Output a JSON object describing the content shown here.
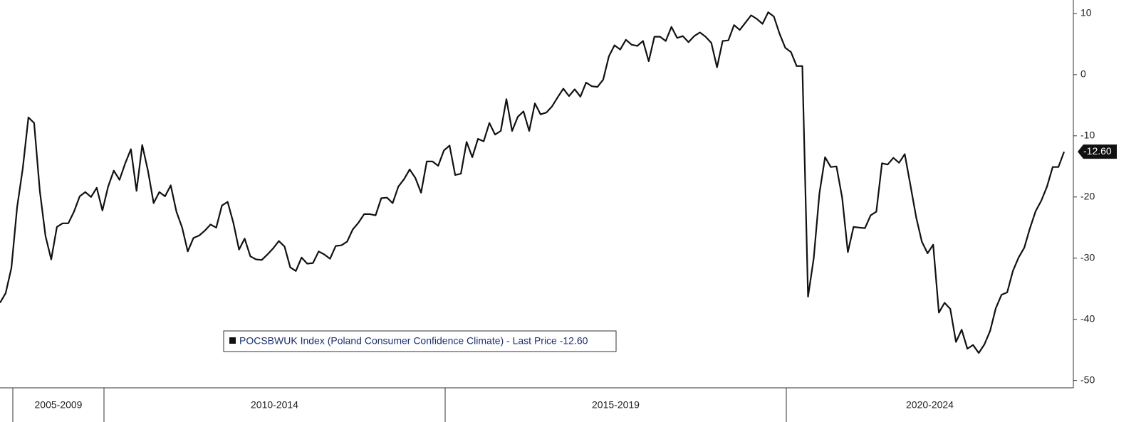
{
  "chart_data": {
    "type": "line",
    "periods": [
      "2005-2009",
      "2010-2014",
      "2015-2019",
      "2020-2024"
    ],
    "series": [
      {
        "name": "POCSBWUK Index (Poland Consumer Confidence Climate) - Last Price -12.60",
        "color": "#111111",
        "values": [
          -37.3,
          -35.7,
          -31.6,
          -21.7,
          -15.3,
          -7.0,
          -7.9,
          -19,
          -26.4,
          -30.2,
          -24.9,
          -24.3,
          -24.3,
          -22.4,
          -19.9,
          -19.2,
          -20,
          -18.5,
          -22.2,
          -18.3,
          -15.7,
          -17.2,
          -14.5,
          -12.2,
          -19,
          -11.5,
          -15.7,
          -21,
          -19.2,
          -19.9,
          -18.1,
          -22.4,
          -25,
          -28.9,
          -26.7,
          -26.3,
          -25.5,
          -24.5,
          -25,
          -21.4,
          -20.8,
          -24.2,
          -28.6,
          -26.8,
          -29.7,
          -30.2,
          -30.3,
          -29.4,
          -28.4,
          -27.2,
          -28.1,
          -31.5,
          -32.1,
          -29.9,
          -30.9,
          -30.8,
          -28.9,
          -29.4,
          -30.1,
          -28,
          -27.9,
          -27.3,
          -25.3,
          -24.2,
          -22.8,
          -22.8,
          -23,
          -20.2,
          -20.1,
          -21,
          -18.3,
          -17.1,
          -15.5,
          -16.9,
          -19.3,
          -14.2,
          -14.2,
          -14.9,
          -12.4,
          -11.6,
          -16.4,
          -16.2,
          -11,
          -13.5,
          -10.5,
          -10.9,
          -7.9,
          -9.8,
          -9.2,
          -4,
          -9.2,
          -6.9,
          -6,
          -9.2,
          -4.7,
          -6.5,
          -6.2,
          -5.2,
          -3.7,
          -2.3,
          -3.5,
          -2.4,
          -3.6,
          -1.3,
          -1.9,
          -2,
          -0.8,
          3,
          4.8,
          4.1,
          5.7,
          4.9,
          4.7,
          5.5,
          2.2,
          6.2,
          6.2,
          5.5,
          7.8,
          6,
          6.3,
          5.3,
          6.3,
          6.9,
          6.2,
          5.2,
          1.2,
          5.5,
          5.6,
          8.1,
          7.3,
          8.5,
          9.7,
          9.1,
          8.3,
          10.2,
          9.5,
          6.7,
          4.4,
          3.7,
          1.4,
          1.4,
          -36.3,
          -30,
          -19.4,
          -13.5,
          -15.1,
          -15,
          -20.1,
          -29,
          -24.9,
          -25,
          -25.1,
          -23,
          -22.4,
          -14.5,
          -14.7,
          -13.6,
          -14.4,
          -13,
          -18.1,
          -23.3,
          -27.3,
          -29.2,
          -27.8,
          -38.9,
          -37.3,
          -38.3,
          -43.7,
          -41.7,
          -44.8,
          -44.2,
          -45.5,
          -44.1,
          -41.9,
          -38.2,
          -36,
          -35.6,
          -32.1,
          -29.9,
          -28.3,
          -25.1,
          -22.3,
          -20.6,
          -18.3,
          -15.1,
          -15.1,
          -12.6
        ],
        "value_labels": [
          null,
          null,
          null,
          null,
          null,
          null,
          null,
          null,
          null,
          null,
          null,
          null,
          null,
          null,
          null,
          null,
          null,
          null,
          null,
          null,
          null,
          null,
          null,
          null,
          null,
          null,
          null,
          null,
          null,
          null,
          null,
          null,
          null,
          null,
          null,
          null,
          null,
          null,
          null,
          null,
          null,
          null,
          null,
          null,
          null,
          null,
          null,
          null,
          null,
          null,
          null,
          null,
          null,
          null,
          null,
          null,
          null,
          null,
          null,
          null,
          null,
          null,
          null,
          null,
          null,
          null,
          null,
          null,
          null,
          null,
          null,
          null,
          null,
          null,
          null,
          null,
          null,
          null,
          null,
          null,
          null,
          null,
          null,
          null,
          null,
          null,
          null,
          null,
          null,
          null,
          null,
          null,
          null,
          null,
          null,
          null,
          null,
          null,
          null,
          null,
          null,
          null,
          null,
          null,
          null,
          null,
          null,
          null,
          null,
          null,
          null,
          null,
          null,
          null,
          null,
          null,
          null,
          null,
          null,
          null,
          null,
          null,
          null,
          null,
          null,
          null,
          null,
          null,
          null,
          null,
          null,
          null,
          null,
          null,
          null,
          null,
          null,
          null,
          null,
          null,
          null,
          null,
          null,
          null,
          null,
          null,
          null,
          null,
          null,
          null,
          null,
          null,
          null,
          null,
          null,
          null,
          null,
          null,
          null,
          null,
          null,
          null,
          null,
          null,
          null,
          null,
          null,
          null,
          null,
          null,
          null,
          null,
          null,
          null,
          null,
          null,
          null,
          null,
          null,
          null,
          null,
          null,
          null,
          null,
          null,
          null,
          null,
          "-12.60"
        ]
      }
    ],
    "ylim": [
      -51.2,
      12.2
    ],
    "yticks": [
      10,
      0,
      -10,
      -20,
      -30,
      -40,
      -50
    ],
    "y_axis_side": "right"
  }
}
